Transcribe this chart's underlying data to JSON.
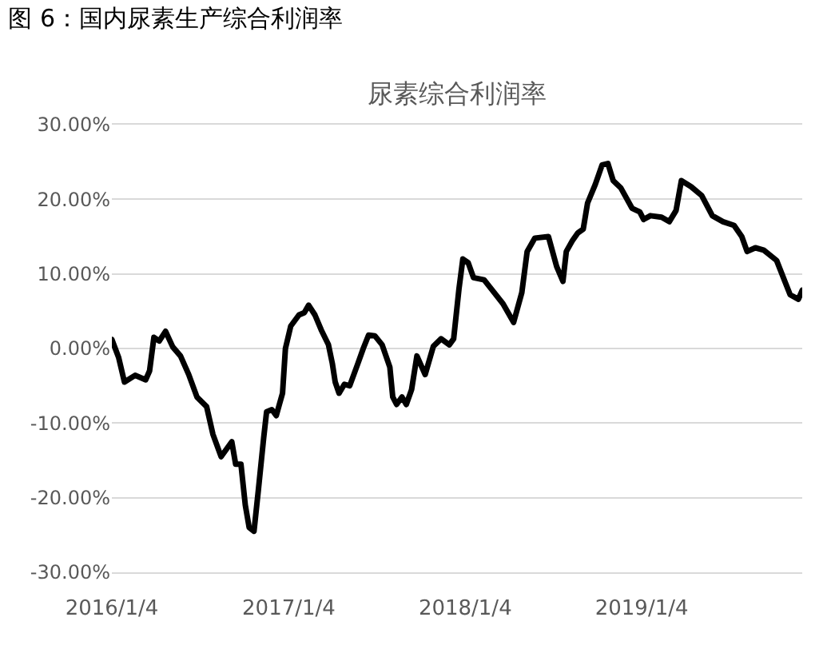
{
  "chart_data": {
    "type": "line",
    "title": "图 6：国内尿素生产综合利润率",
    "subtitle": "尿素综合利润率",
    "x": [
      "2016-01-04",
      "2016-01-18",
      "2016-01-30",
      "2016-02-21",
      "2016-03-14",
      "2016-03-22",
      "2016-03-31",
      "2016-04-11",
      "2016-04-24",
      "2016-05-09",
      "2016-05-25",
      "2016-06-11",
      "2016-06-28",
      "2016-07-18",
      "2016-07-31",
      "2016-08-17",
      "2016-09-08",
      "2016-09-16",
      "2016-09-27",
      "2016-10-06",
      "2016-10-14",
      "2016-10-24",
      "2016-11-02",
      "2016-11-13",
      "2016-11-19",
      "2016-11-30",
      "2016-12-09",
      "2016-12-22",
      "2016-12-28",
      "2017-01-08",
      "2017-01-25",
      "2017-02-05",
      "2017-02-14",
      "2017-02-27",
      "2017-03-12",
      "2017-03-27",
      "2017-04-04",
      "2017-04-10",
      "2017-04-18",
      "2017-04-29",
      "2017-05-10",
      "2017-05-27",
      "2017-06-07",
      "2017-06-18",
      "2017-07-01",
      "2017-07-16",
      "2017-08-01",
      "2017-08-07",
      "2017-08-15",
      "2017-08-26",
      "2017-09-04",
      "2017-09-15",
      "2017-09-26",
      "2017-10-13",
      "2017-10-30",
      "2017-11-15",
      "2017-12-02",
      "2017-12-11",
      "2017-12-22",
      "2017-12-30",
      "2018-01-10",
      "2018-01-21",
      "2018-02-12",
      "2018-03-01",
      "2018-03-23",
      "2018-04-14",
      "2018-05-01",
      "2018-05-12",
      "2018-05-28",
      "2018-06-25",
      "2018-07-12",
      "2018-07-25",
      "2018-08-01",
      "2018-08-14",
      "2018-08-25",
      "2018-09-05",
      "2018-09-14",
      "2018-09-30",
      "2018-10-14",
      "2018-10-26",
      "2018-11-06",
      "2018-11-22",
      "2018-12-15",
      "2018-12-31",
      "2019-01-08",
      "2019-01-22",
      "2019-02-14",
      "2019-03-02",
      "2019-03-16",
      "2019-03-27",
      "2019-04-16",
      "2019-05-08",
      "2019-05-30",
      "2019-06-21",
      "2019-07-14",
      "2019-07-30",
      "2019-08-10",
      "2019-08-27",
      "2019-09-13",
      "2019-10-10",
      "2019-10-27",
      "2019-11-07",
      "2019-11-24",
      "2019-12-02"
    ],
    "series": [
      {
        "color": "#000000",
        "values": [
          1.2,
          -1.2,
          -4.5,
          -3.6,
          -4.2,
          -3.0,
          1.5,
          1.0,
          2.3,
          0.2,
          -1.0,
          -3.5,
          -6.5,
          -7.8,
          -11.5,
          -14.5,
          -12.5,
          -15.5,
          -15.5,
          -21,
          -24,
          -24.5,
          -19,
          -12,
          -8.5,
          -8.2,
          -9,
          -6,
          0,
          3,
          4.5,
          4.8,
          5.8,
          4.5,
          2.5,
          0.5,
          -2,
          -4.5,
          -6,
          -4.8,
          -5,
          -2,
          0,
          1.8,
          1.7,
          0.5,
          -2.5,
          -6.5,
          -7.5,
          -6.5,
          -7.5,
          -5.5,
          -1,
          -3.5,
          0.3,
          1.3,
          0.5,
          1.3,
          8,
          12,
          11.5,
          9.5,
          9.2,
          7.8,
          6,
          3.5,
          7.5,
          13,
          14.8,
          15,
          11,
          9,
          13,
          14.5,
          15.5,
          16,
          19.5,
          22,
          24.6,
          24.8,
          22.5,
          21.5,
          18.8,
          18.3,
          17.3,
          17.8,
          17.6,
          17,
          18.5,
          22.5,
          21.7,
          20.5,
          17.8,
          17,
          16.5,
          15,
          13,
          13.5,
          13.2,
          11.8,
          9,
          7.2,
          6.6,
          7.8
        ]
      }
    ],
    "xlim": [
      "2016-01-04",
      "2019-12-02"
    ],
    "xticks": [
      {
        "value": "2016-01-04",
        "label": "2016/1/4"
      },
      {
        "value": "2017-01-04",
        "label": "2017/1/4"
      },
      {
        "value": "2018-01-04",
        "label": "2018/1/4"
      },
      {
        "value": "2019-01-04",
        "label": "2019/1/4"
      }
    ],
    "ylim": [
      -30,
      30
    ],
    "yticks": [
      {
        "value": -30,
        "label": "-30.00%"
      },
      {
        "value": -20,
        "label": "-20.00%"
      },
      {
        "value": -10,
        "label": "-10.00%"
      },
      {
        "value": 0,
        "label": "0.00%"
      },
      {
        "value": 10,
        "label": "10.00%"
      },
      {
        "value": 20,
        "label": "20.00%"
      },
      {
        "value": 30,
        "label": "30.00%"
      }
    ],
    "grid": "y",
    "legend": false,
    "marker": "none",
    "line_style": "solid"
  }
}
